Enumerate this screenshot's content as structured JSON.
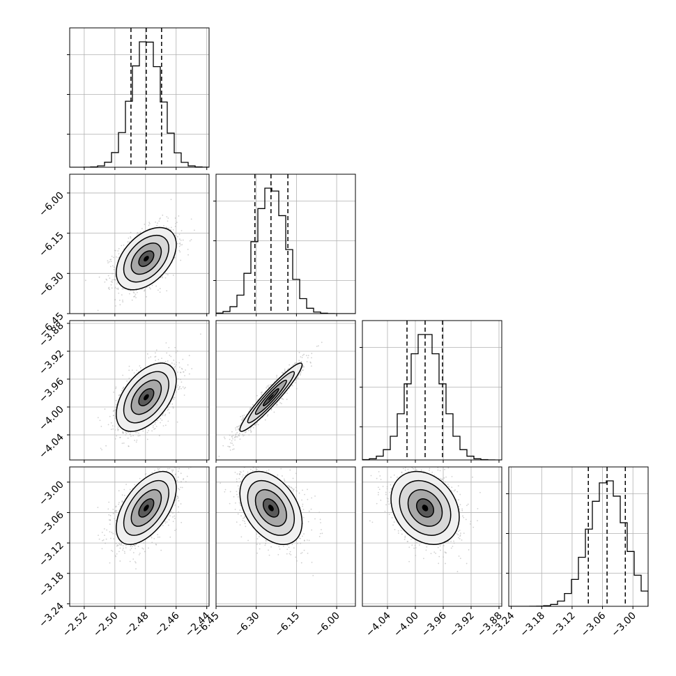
{
  "chart_data": {
    "type": "corner",
    "description_free": true,
    "parameters": [
      {
        "index": 0,
        "mean": -2.4795,
        "std": 0.0098,
        "range": [
          -2.5295,
          -2.4385
        ],
        "ticks": [
          -2.52,
          -2.5,
          -2.48,
          -2.46,
          -2.44
        ],
        "tick_labels": [
          "−2.52",
          "−2.50",
          "−2.48",
          "−2.46",
          "−2.44"
        ],
        "quantiles": [
          -2.4895,
          -2.4795,
          -2.4695
        ]
      },
      {
        "index": 1,
        "mean": -6.245,
        "std": 0.058,
        "range": [
          -6.45,
          -5.93
        ],
        "ticks": [
          -6.45,
          -6.3,
          -6.15,
          -6.0
        ],
        "tick_labels": [
          "−6.45",
          "−6.30",
          "−6.15",
          "−6.00"
        ],
        "quantiles": [
          -6.305,
          -6.245,
          -6.182
        ]
      },
      {
        "index": 2,
        "mean": -3.986,
        "std": 0.0245,
        "range": [
          -4.076,
          -3.876
        ],
        "ticks": [
          -4.04,
          -4.0,
          -3.96,
          -3.92,
          -3.88
        ],
        "tick_labels": [
          "−4.04",
          "−4.00",
          "−3.96",
          "−3.92",
          "−3.88"
        ],
        "quantiles": [
          -4.012,
          -3.986,
          -3.961
        ]
      },
      {
        "index": 3,
        "mean": -3.051,
        "std": 0.036,
        "range": [
          -3.245,
          -2.97
        ],
        "ticks": [
          -3.24,
          -3.18,
          -3.12,
          -3.06,
          -3.0
        ],
        "tick_labels": [
          "−3.24",
          "−3.18",
          "−3.12",
          "−3.06",
          "−3.00"
        ],
        "quantiles": [
          -3.088,
          -3.051,
          -3.015
        ]
      }
    ],
    "correlations": {
      "0-1": 0.45,
      "0-2": 0.5,
      "1-2": 0.95,
      "0-3": 0.55,
      "1-3": -0.4,
      "2-3": -0.25
    },
    "contour_levels_sigma": [
      0.5,
      1.0,
      1.5,
      2.0
    ],
    "grid": true,
    "colors": {
      "line": "#000000",
      "scatter": "#b0b0b0",
      "grid": "#b0b0b0"
    }
  }
}
